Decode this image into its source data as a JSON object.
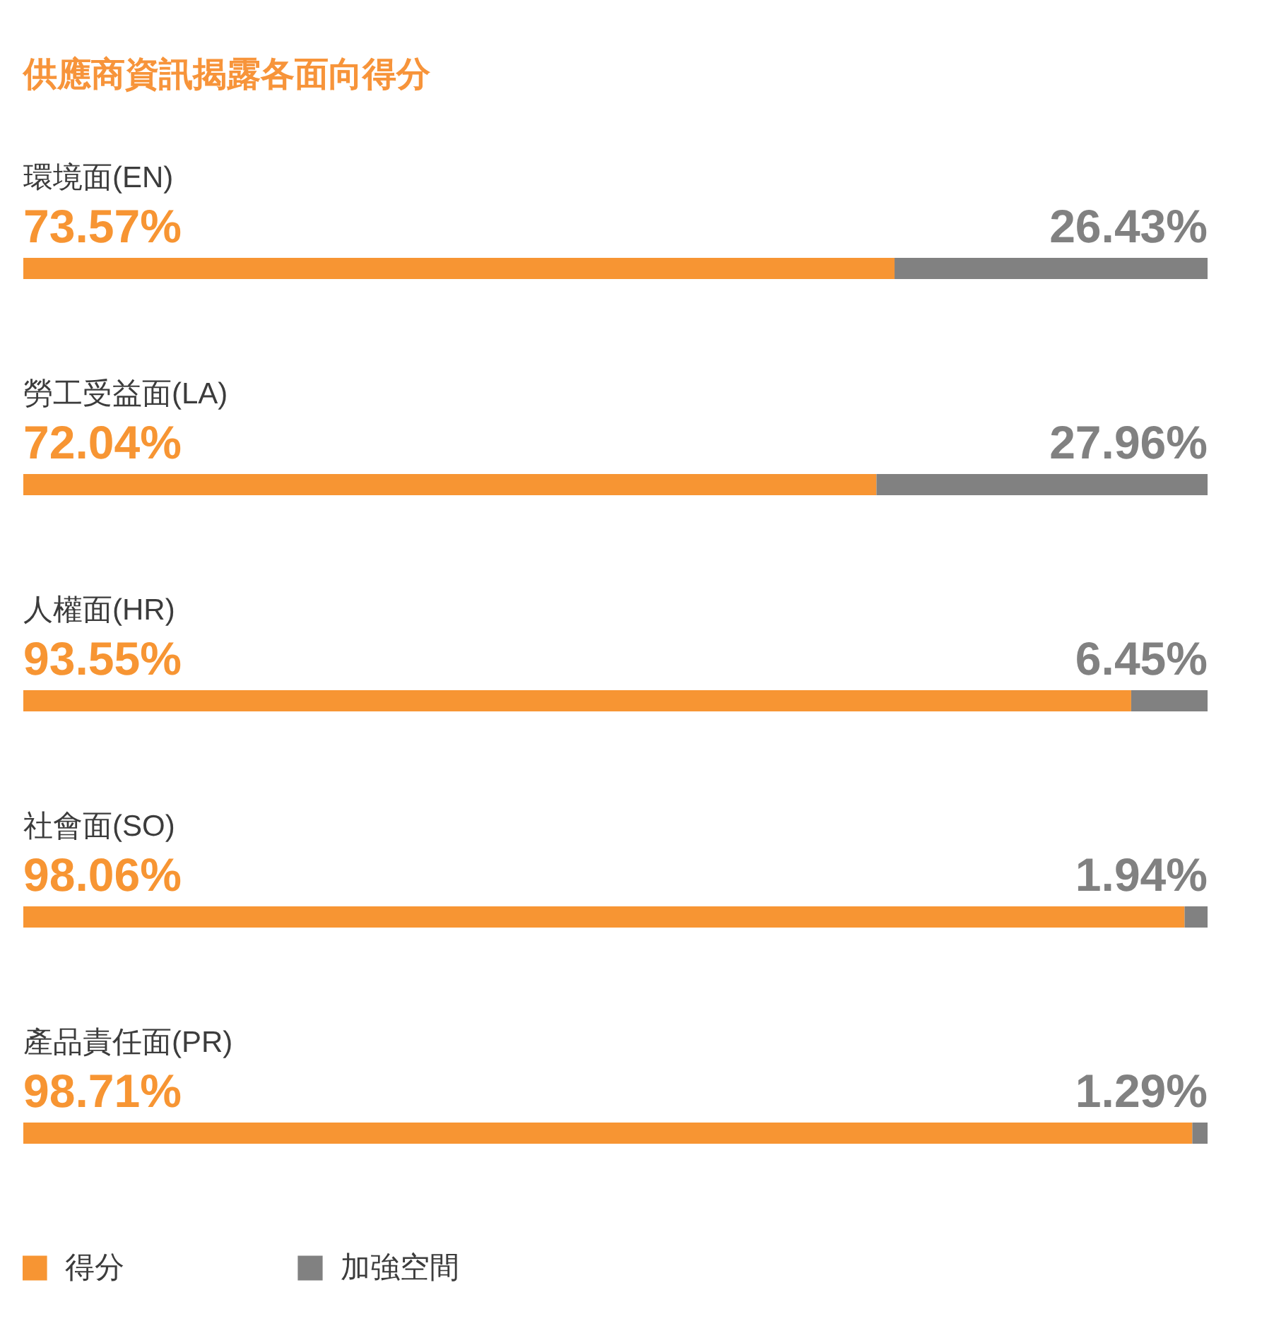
{
  "chart_data": {
    "type": "bar",
    "orientation": "horizontal",
    "stacked": true,
    "title": "供應商資訊揭露各面向得分",
    "categories": [
      "環境面(EN)",
      "勞工受益面(LA)",
      "人權面(HR)",
      "社會面(SO)",
      "產品責任面(PR)"
    ],
    "series": [
      {
        "name": "得分",
        "color": "#f79533",
        "values": [
          73.57,
          72.04,
          93.55,
          98.06,
          98.71
        ],
        "value_labels": [
          "73.57%",
          "72.04%",
          "93.55%",
          "98.06%",
          "98.71%"
        ]
      },
      {
        "name": "加強空間",
        "color": "#818181",
        "values": [
          26.43,
          27.96,
          6.45,
          1.94,
          1.29
        ],
        "value_labels": [
          "26.43%",
          "27.96%",
          "6.45%",
          "1.94%",
          "1.29%"
        ]
      }
    ],
    "xlim": [
      0,
      100
    ],
    "tick_labels": false,
    "legend": "bottom left"
  }
}
